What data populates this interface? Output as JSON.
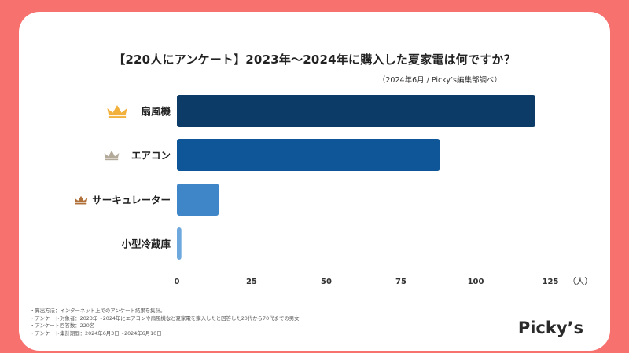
{
  "title": "【220人にアンケート】2023年～2024年に購入した夏家電は何ですか？",
  "subtitle": "（2024年6月 / Picky’s編集部調べ）",
  "brand": "Picky’s",
  "notes": [
    "・算出方法：インターネット上でのアンケート結果を集計。",
    "・アンケート対象者：2023年～2024年にエアコンや扇風機など夏家電を購入したと回答した20代から70代までの男女",
    "・アンケート回答数：220名",
    "・アンケート集計期間：2024年6月3日～2024年6月10日"
  ],
  "chart_data": {
    "type": "bar",
    "orientation": "horizontal",
    "categories": [
      "扇風機",
      "エアコン",
      "サーキュレーター",
      "小型冷蔵庫"
    ],
    "values": [
      120,
      88,
      14,
      1.5
    ],
    "xticks": [
      "0",
      "25",
      "50",
      "75",
      "100",
      "125"
    ],
    "xunit": "（人）",
    "xlim": [
      0,
      125
    ],
    "bar_colors": [
      "#0b3b66",
      "#0f5699",
      "#3f86c9",
      "#6ea8dc"
    ],
    "crown_colors": [
      "#f1b13c",
      "#b3aa9a",
      "#b0703a"
    ],
    "grid": false
  }
}
